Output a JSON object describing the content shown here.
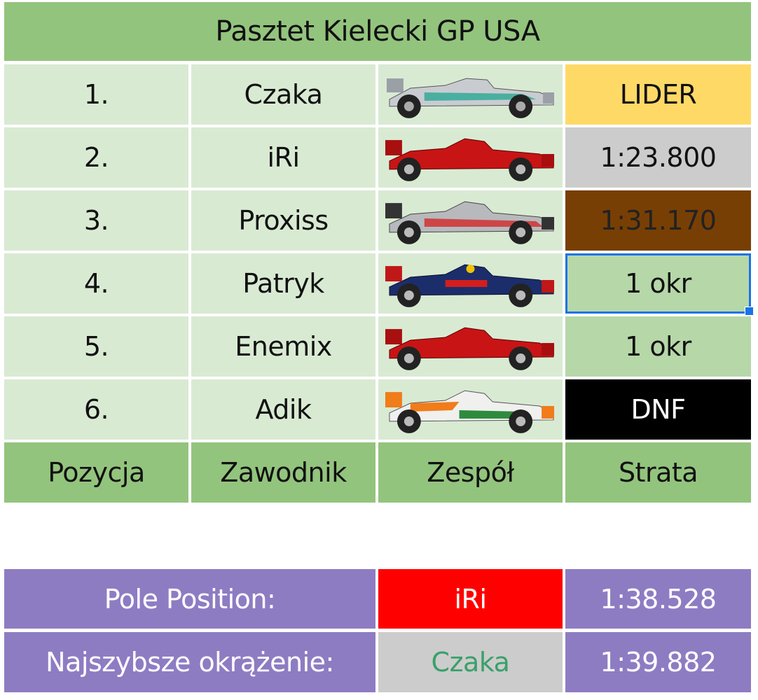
{
  "title": "Pasztet Kielecki GP USA",
  "rows": [
    {
      "position": "1.",
      "driver": "Czaka",
      "team": "mercedes-car-icon",
      "gap": "LIDER"
    },
    {
      "position": "2.",
      "driver": "iRi",
      "team": "ferrari-car-icon",
      "gap": "1:23.800"
    },
    {
      "position": "3.",
      "driver": "Proxiss",
      "team": "mclaren-car-icon",
      "gap": "1:31.170"
    },
    {
      "position": "4.",
      "driver": "Patryk",
      "team": "redbull-car-icon",
      "gap": "1 okr"
    },
    {
      "position": "5.",
      "driver": "Enemix",
      "team": "ferrari-car-icon",
      "gap": "1 okr"
    },
    {
      "position": "6.",
      "driver": "Adik",
      "team": "forceindia-car-icon",
      "gap": "DNF"
    }
  ],
  "headers": {
    "position": "Pozycja",
    "driver": "Zawodnik",
    "team": "Zespół",
    "gap": "Strata"
  },
  "pole": {
    "label": "Pole Position:",
    "driver": "iRi",
    "time": "1:38.528"
  },
  "fastest_lap": {
    "label": "Najszybsze okrążenie:",
    "driver": "Czaka",
    "time": "1:39.882"
  },
  "colors": {
    "title_bg": "#93c47d",
    "row_bg": "#d9ead3",
    "leader": "#ffd966",
    "second": "#cccccc",
    "third": "#783f04",
    "lapped": "#b6d7a8",
    "dnf": "#000000",
    "stats_bg": "#8e7cc3",
    "pole_highlight": "#ff0000",
    "fastest_driver_text": "#3aa06b",
    "selection": "#1a73e8"
  }
}
